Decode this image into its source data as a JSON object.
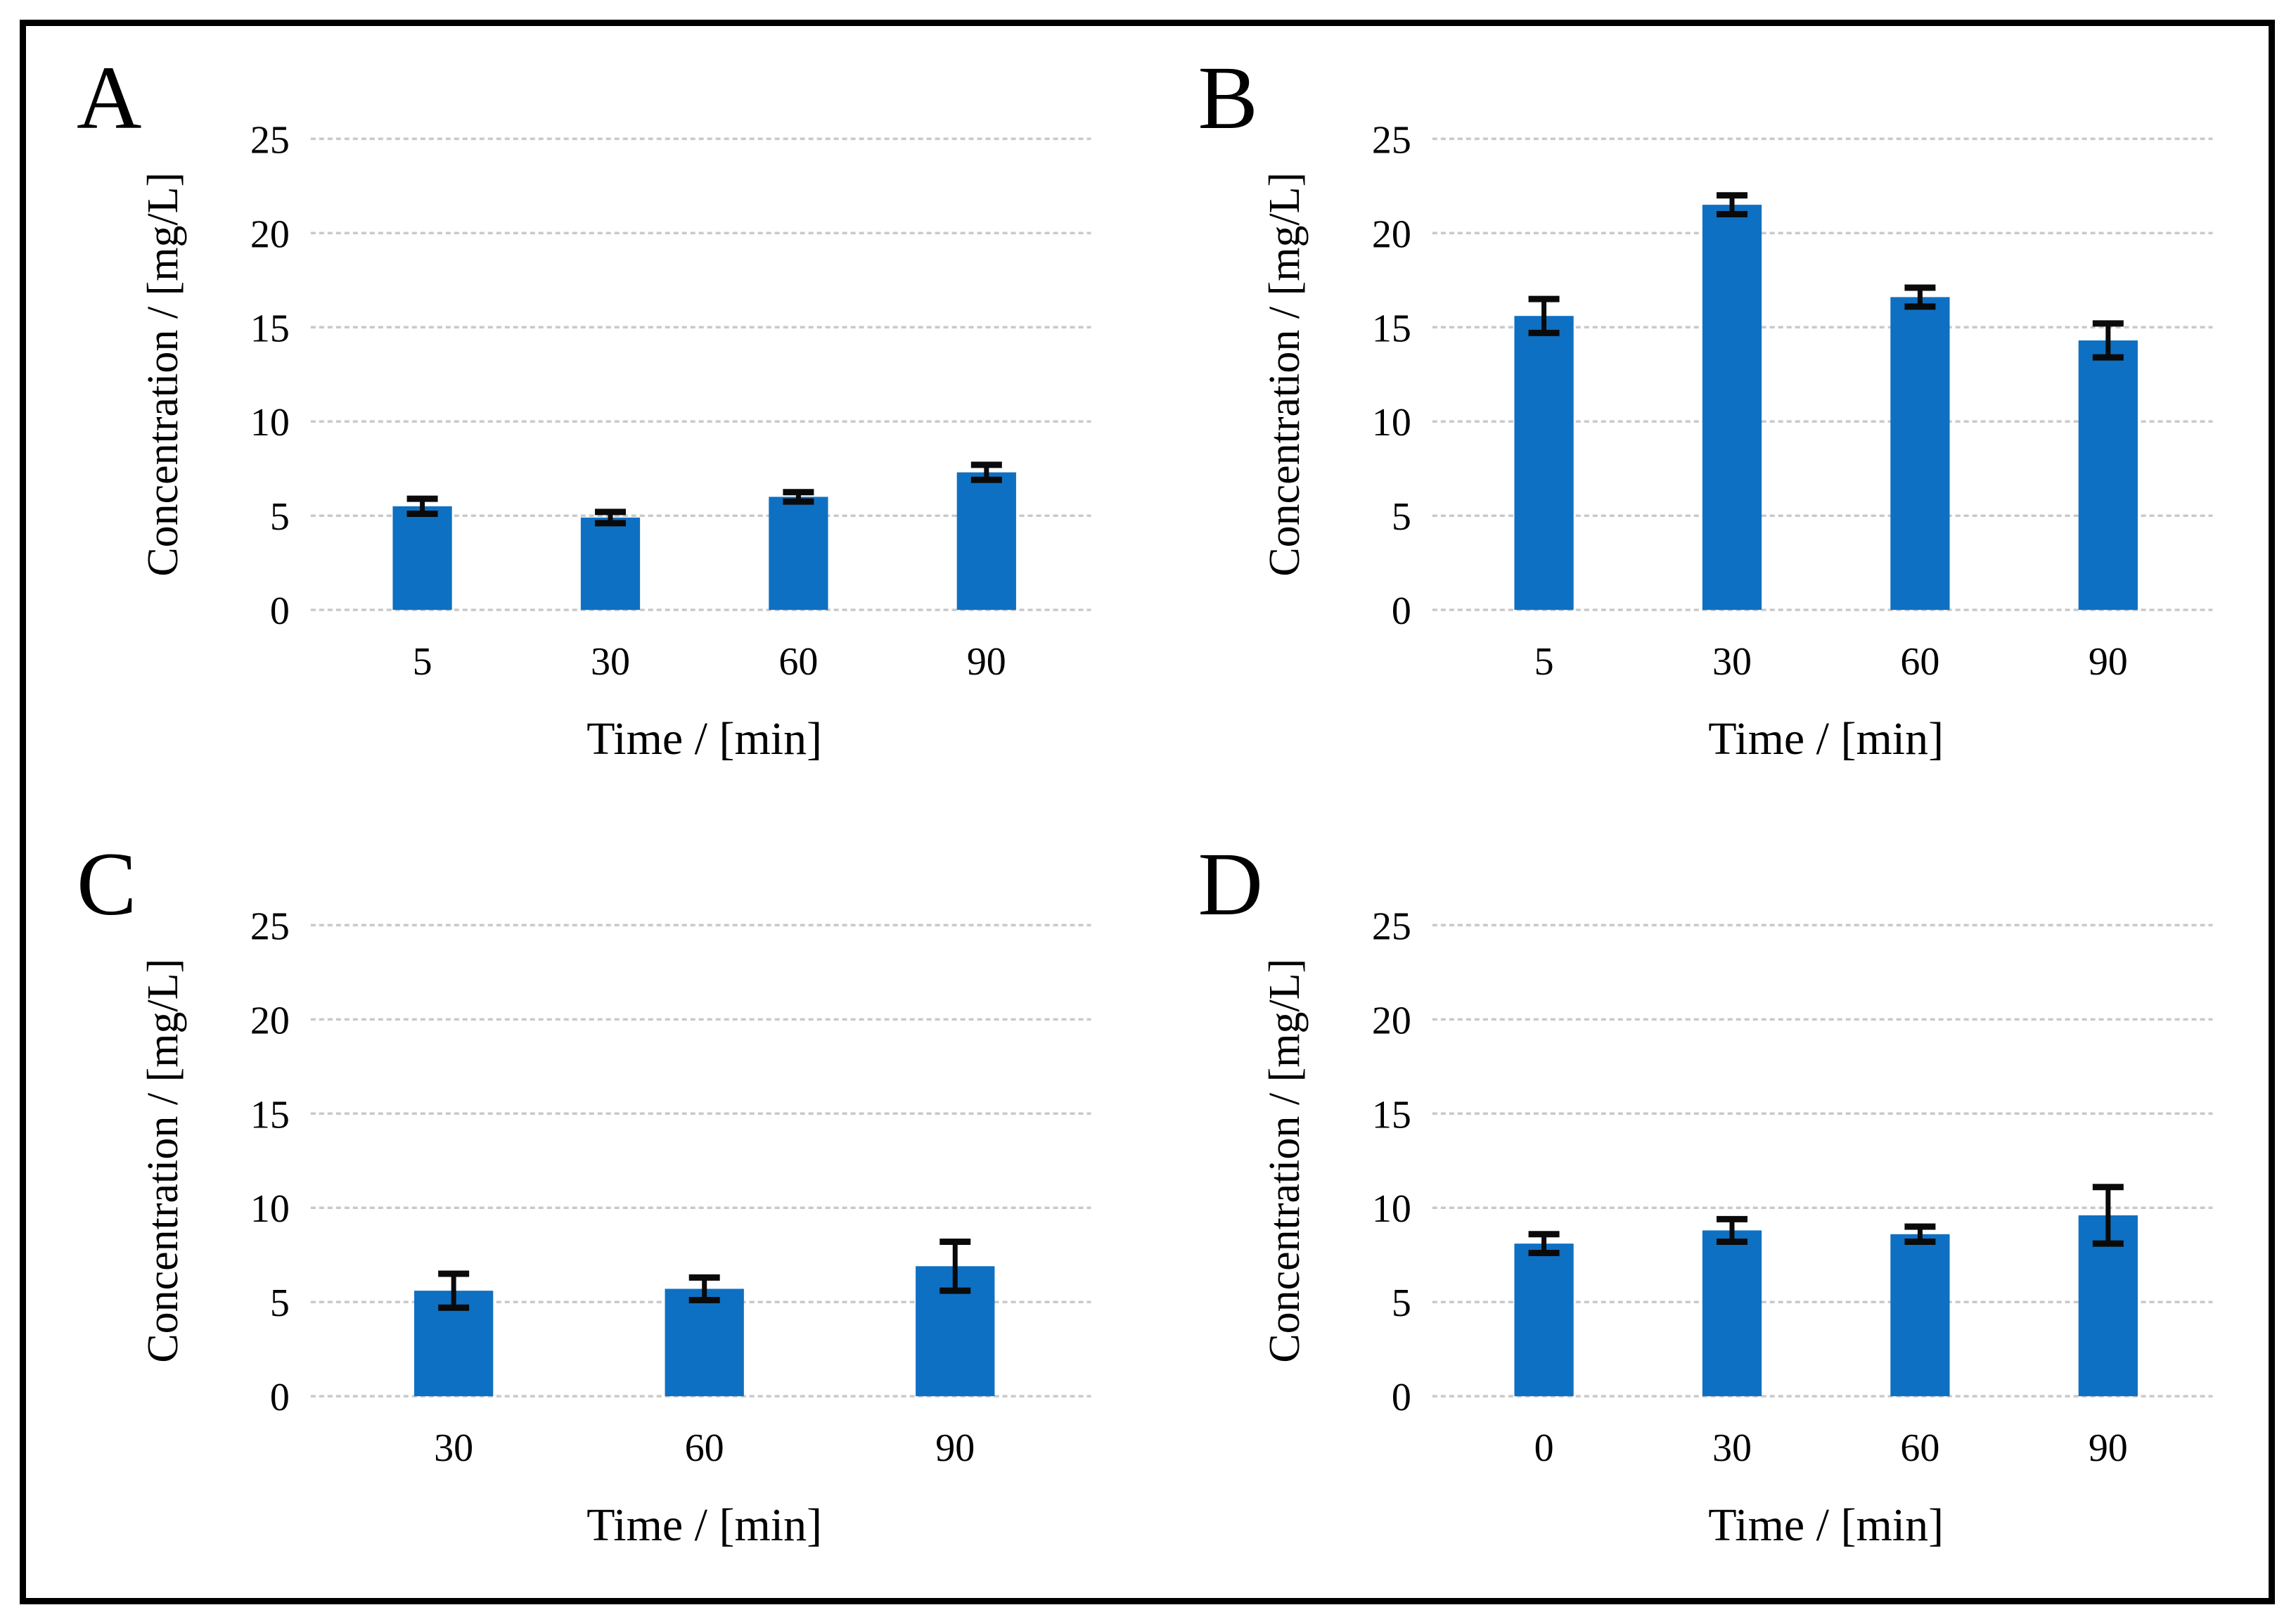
{
  "figure": {
    "background": "#ffffff",
    "frame_border_color": "#000000",
    "panel_letters": [
      "A",
      "B",
      "C",
      "D"
    ]
  },
  "colors": {
    "bar": "#0E70C2",
    "gridline": "#C9C9C9",
    "error_bar": "#0a0a0a",
    "text": "#000000"
  },
  "chart_data": [
    {
      "panel": "A",
      "type": "bar",
      "categories": [
        "5",
        "30",
        "60",
        "90"
      ],
      "values": [
        5.5,
        4.9,
        6.0,
        7.3
      ],
      "errors": [
        0.4,
        0.3,
        0.25,
        0.4
      ],
      "title": "",
      "xlabel": "Time / [min]",
      "ylabel": "Concentration / [mg/L]",
      "ylim": [
        0,
        25
      ],
      "yticks": [
        0,
        5,
        10,
        15,
        20,
        25
      ],
      "grid": "horizontal-dashed",
      "legend": "none"
    },
    {
      "panel": "B",
      "type": "bar",
      "categories": [
        "5",
        "30",
        "60",
        "90"
      ],
      "values": [
        15.6,
        21.5,
        16.6,
        14.3
      ],
      "errors": [
        0.9,
        0.5,
        0.5,
        0.9
      ],
      "title": "",
      "xlabel": "Time / [min]",
      "ylabel": "Concentration / [mg/L]",
      "ylim": [
        0,
        25
      ],
      "yticks": [
        0,
        5,
        10,
        15,
        20,
        25
      ],
      "grid": "horizontal-dashed",
      "legend": "none"
    },
    {
      "panel": "C",
      "type": "bar",
      "categories": [
        "30",
        "60",
        "90"
      ],
      "values": [
        5.6,
        5.7,
        6.9
      ],
      "errors": [
        0.9,
        0.6,
        1.3
      ],
      "title": "",
      "xlabel": "Time / [min]",
      "ylabel": "Concentration / [mg/L]",
      "ylim": [
        0,
        25
      ],
      "yticks": [
        0,
        5,
        10,
        15,
        20,
        25
      ],
      "grid": "horizontal-dashed",
      "legend": "none"
    },
    {
      "panel": "D",
      "type": "bar",
      "categories": [
        "0",
        "30",
        "60",
        "90"
      ],
      "values": [
        8.1,
        8.8,
        8.6,
        9.6
      ],
      "errors": [
        0.5,
        0.6,
        0.4,
        1.5
      ],
      "title": "",
      "xlabel": "Time / [min]",
      "ylabel": "Concentration / [mg/L]",
      "ylim": [
        0,
        25
      ],
      "yticks": [
        0,
        5,
        10,
        15,
        20,
        25
      ],
      "grid": "horizontal-dashed",
      "legend": "none"
    }
  ]
}
